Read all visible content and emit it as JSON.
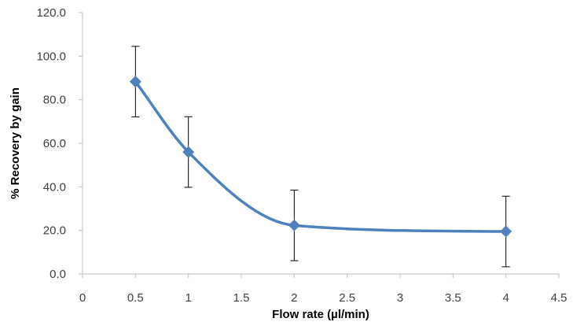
{
  "chart_data": {
    "type": "scatter",
    "title": "",
    "xlabel": "Flow rate (µl/min)",
    "ylabel": "% Recovery by gain",
    "xlim": [
      0,
      4.5
    ],
    "ylim": [
      0,
      120
    ],
    "x_ticks": [
      "0",
      "0.5",
      "1",
      "1.5",
      "2",
      "2.5",
      "3",
      "3.5",
      "4",
      "4.5"
    ],
    "y_ticks": [
      "0.0",
      "20.0",
      "40.0",
      "60.0",
      "80.0",
      "100.0",
      "120.0"
    ],
    "grid": false,
    "legend": "none",
    "line": "smoothed",
    "marker": "diamond",
    "series_color": "#4f81bd",
    "points": [
      {
        "x": 0.5,
        "y": 88.3,
        "err": 16.2
      },
      {
        "x": 1,
        "y": 56.0,
        "err": 16.2
      },
      {
        "x": 2,
        "y": 22.3,
        "err": 16.2
      },
      {
        "x": 4,
        "y": 19.5,
        "err": 16.2
      }
    ]
  }
}
